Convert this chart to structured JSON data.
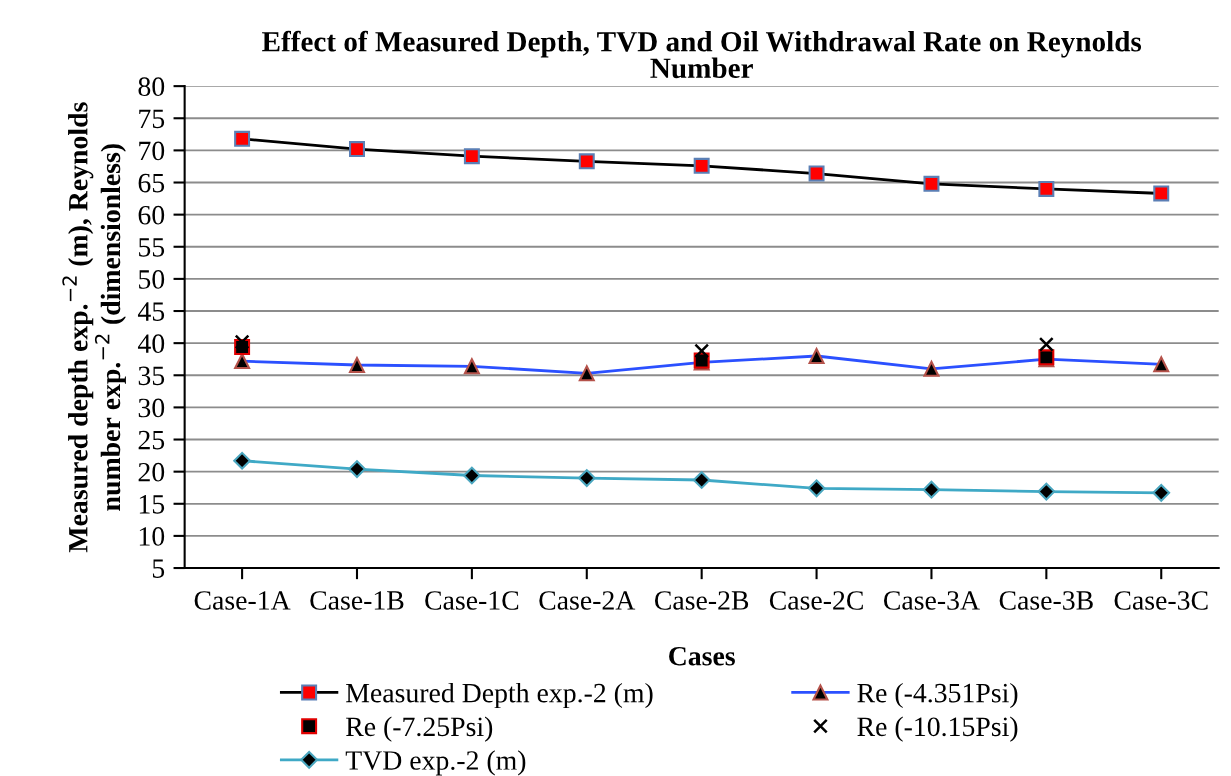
{
  "chart_data": {
    "type": "line",
    "title": "Effect of Measured Depth, TVD and Oil Withdrawal Rate on Reynolds Number",
    "xlabel": "Cases",
    "ylabel": "Measured depth exp.$^{−2}$ (m), Reynolds number exp.$^{−2}$ (dimensionless)",
    "categories": [
      "Case-1A",
      "Case-1B",
      "Case-1C",
      "Case-2A",
      "Case-2B",
      "Case-2C",
      "Case-3A",
      "Case-3B",
      "Case-3C"
    ],
    "series": [
      {
        "name": "Measured Depth exp.-2 (m)",
        "color": "#000000",
        "marker": "square",
        "values": [
          71.8,
          70.2,
          69.1,
          68.3,
          67.6,
          66.4,
          64.8,
          64.0,
          63.3
        ]
      },
      {
        "name": "Re (-4.351Psi)",
        "color": "#2b50ff",
        "marker": "triangle",
        "values": [
          37.2,
          36.6,
          36.4,
          35.3,
          37.0,
          38.0,
          36.0,
          37.5,
          36.7
        ]
      },
      {
        "name": "Re (-7.25Psi)",
        "type": "scatter",
        "color": "#000000",
        "marker": "square",
        "values": [
          39.4,
          null,
          null,
          null,
          37.3,
          null,
          null,
          37.8,
          null
        ]
      },
      {
        "name": "Re (-10.15Psi)",
        "type": "scatter",
        "color": "#000000",
        "marker": "cross",
        "values": [
          40.2,
          null,
          null,
          null,
          38.8,
          null,
          null,
          39.8,
          null
        ]
      },
      {
        "name": "TVD exp.-2 (m)",
        "color": "#3fa9c6",
        "marker": "diamond",
        "values": [
          21.7,
          20.4,
          19.4,
          19.0,
          18.7,
          17.4,
          17.2,
          16.9,
          16.7
        ]
      }
    ],
    "ylim": [
      5,
      80
    ],
    "yticks": [
      5,
      10,
      15,
      20,
      25,
      30,
      35,
      40,
      45,
      50,
      55,
      60,
      65,
      70,
      75,
      80
    ],
    "grid": "y",
    "legend": "bottom",
    "line_style": "solid"
  }
}
